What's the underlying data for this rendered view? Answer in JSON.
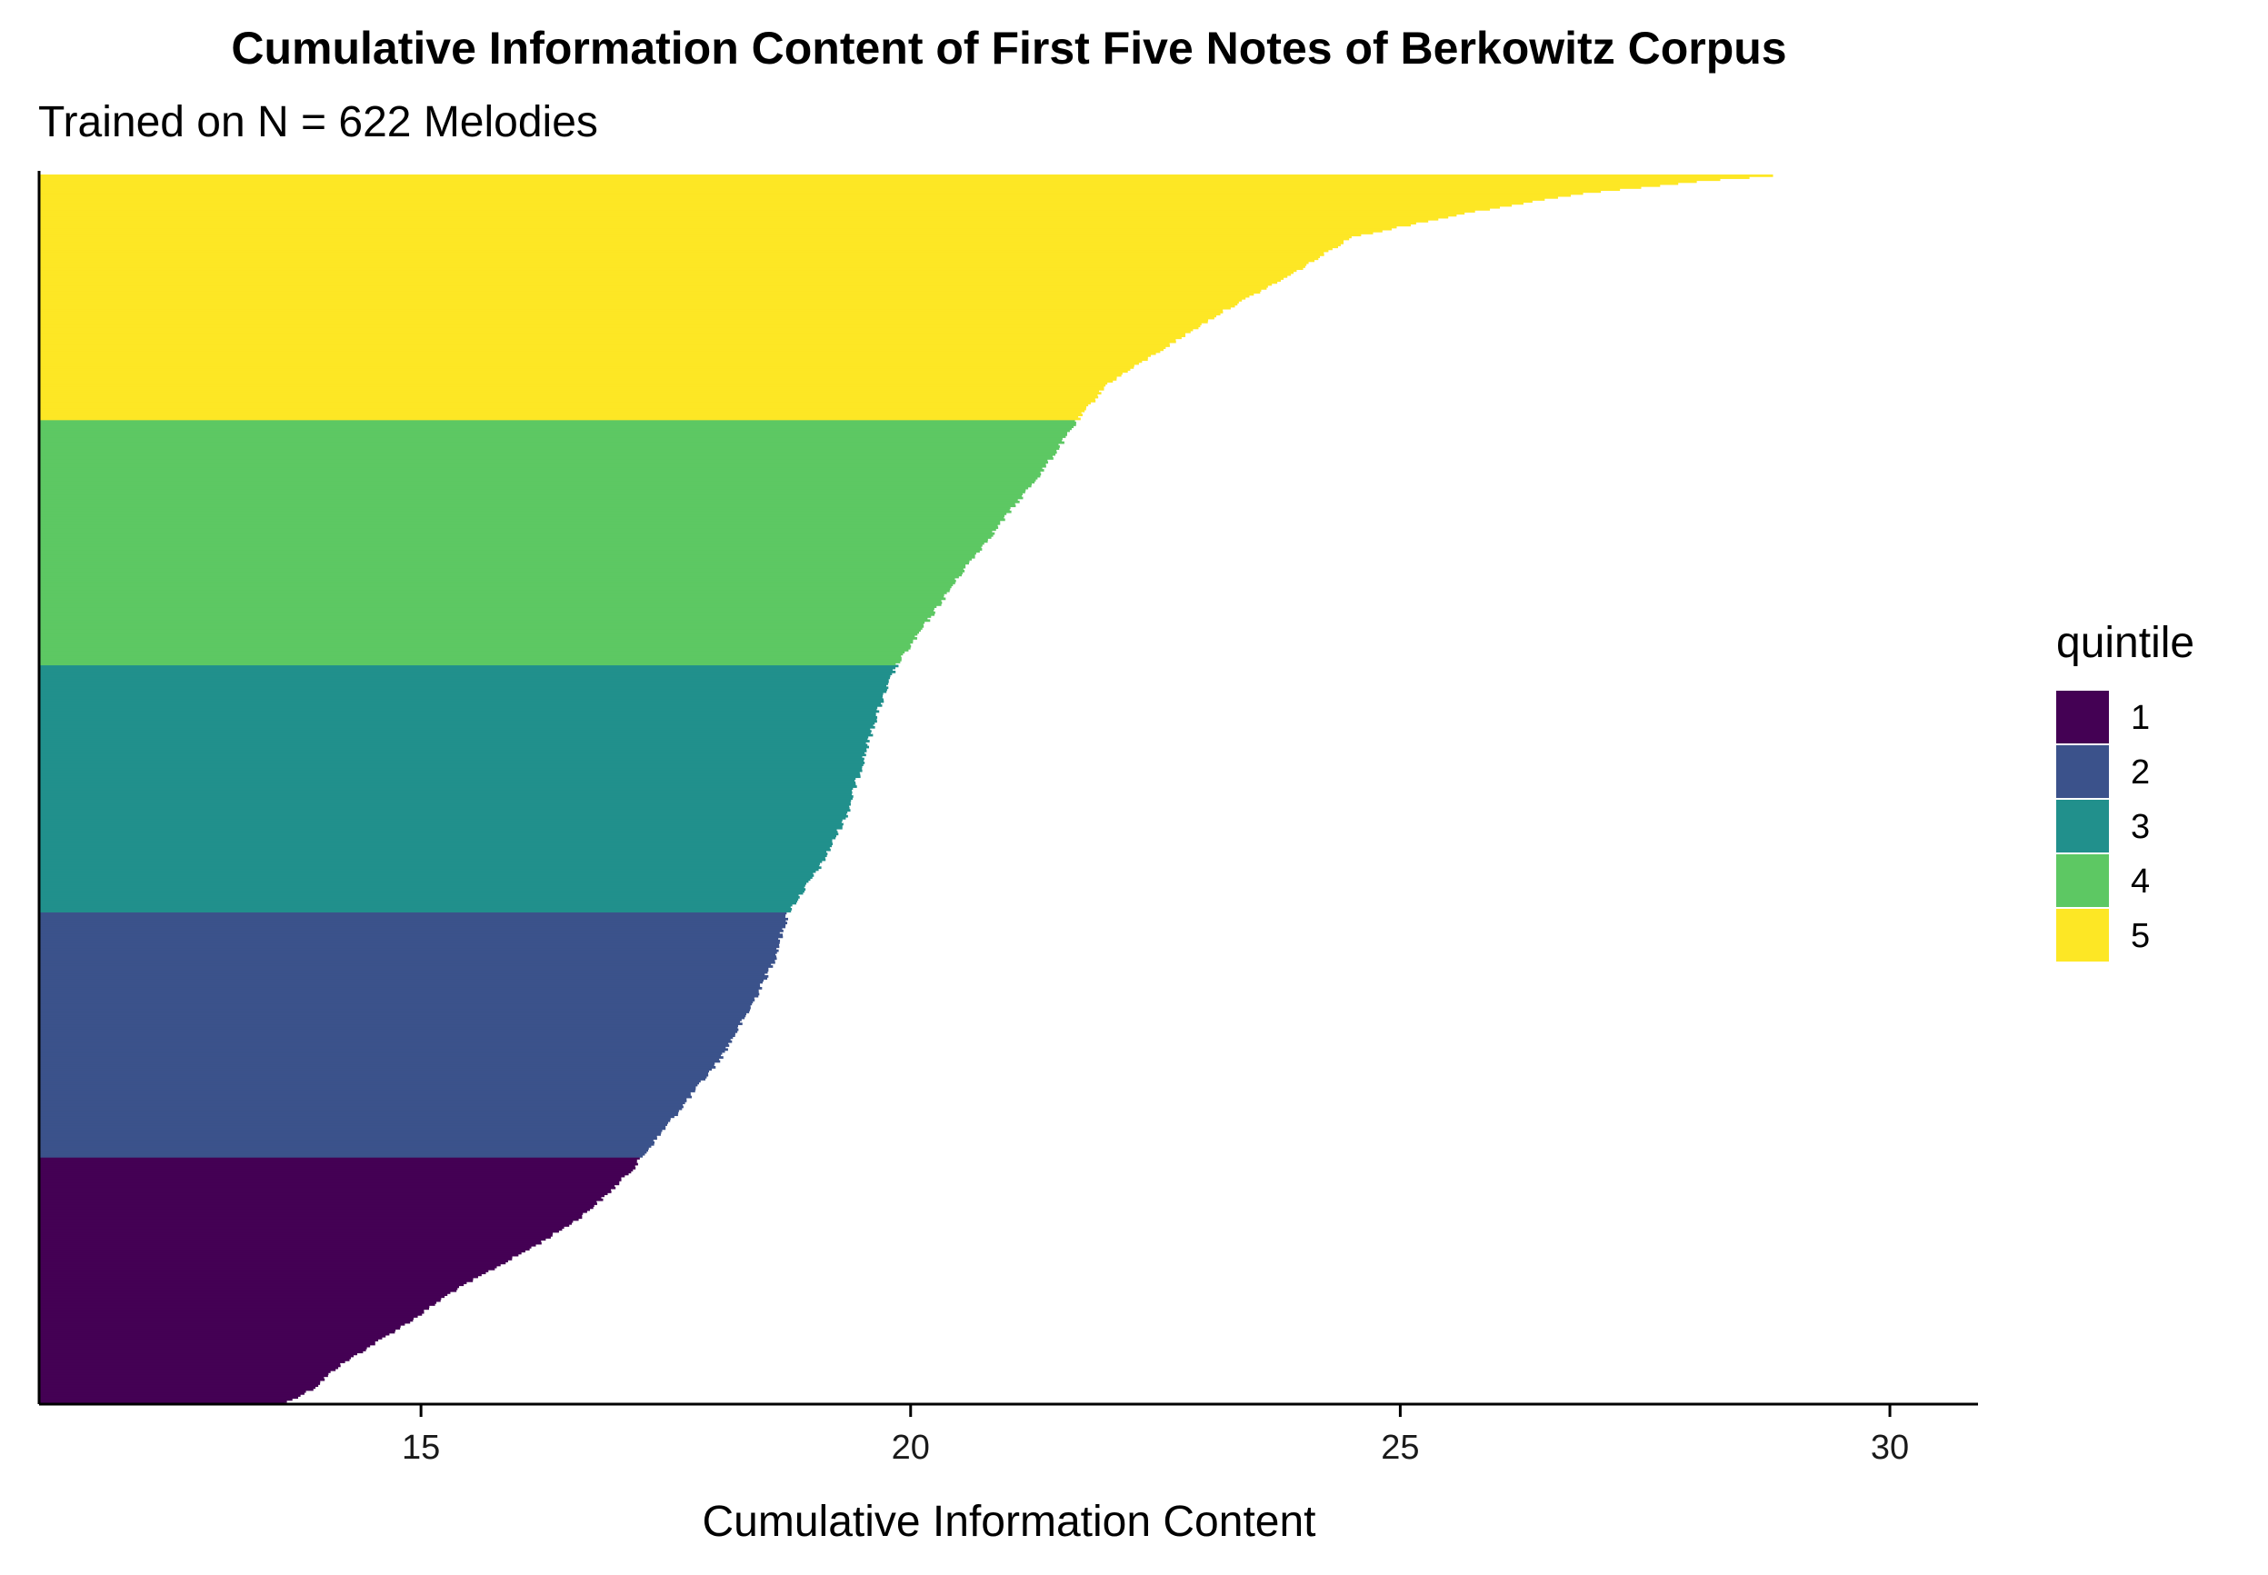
{
  "chart_data": {
    "type": "bar",
    "orientation": "horizontal",
    "title": "Cumulative Information Content of First Five Notes of Berkowitz Corpus",
    "subtitle": "Trained on N = 622 Melodies",
    "xlabel": "Cumulative Information Content",
    "ylabel": "",
    "xlim": [
      11.1,
      30.9
    ],
    "x_ticks": [
      15,
      20,
      25,
      30
    ],
    "grid": false,
    "n_bars": 622,
    "sorted": "ascending",
    "legend": {
      "title": "quintile",
      "placement": "right",
      "entries": [
        {
          "label": "1",
          "color": "#440154"
        },
        {
          "label": "2",
          "color": "#3B528B"
        },
        {
          "label": "3",
          "color": "#21908C"
        },
        {
          "label": "4",
          "color": "#5DC863"
        },
        {
          "label": "5",
          "color": "#FDE725"
        }
      ]
    },
    "quantile_profile": [
      [
        0.0,
        13.6
      ],
      [
        0.012,
        13.9
      ],
      [
        0.03,
        14.15
      ],
      [
        0.05,
        14.55
      ],
      [
        0.07,
        14.95
      ],
      [
        0.09,
        15.3
      ],
      [
        0.11,
        15.75
      ],
      [
        0.13,
        16.2
      ],
      [
        0.15,
        16.6
      ],
      [
        0.17,
        16.9
      ],
      [
        0.19,
        17.15
      ],
      [
        0.2,
        17.25
      ],
      [
        0.24,
        17.65
      ],
      [
        0.28,
        18.05
      ],
      [
        0.32,
        18.35
      ],
      [
        0.36,
        18.6
      ],
      [
        0.4,
        18.75
      ],
      [
        0.44,
        19.1
      ],
      [
        0.48,
        19.35
      ],
      [
        0.52,
        19.5
      ],
      [
        0.56,
        19.65
      ],
      [
        0.6,
        19.85
      ],
      [
        0.64,
        20.2
      ],
      [
        0.68,
        20.55
      ],
      [
        0.72,
        20.95
      ],
      [
        0.76,
        21.35
      ],
      [
        0.8,
        21.7
      ],
      [
        0.83,
        22.0
      ],
      [
        0.86,
        22.6
      ],
      [
        0.89,
        23.2
      ],
      [
        0.92,
        23.9
      ],
      [
        0.95,
        24.5
      ],
      [
        0.97,
        25.7
      ],
      [
        0.985,
        26.8
      ],
      [
        0.995,
        28.0
      ],
      [
        1.0,
        28.8
      ]
    ]
  }
}
